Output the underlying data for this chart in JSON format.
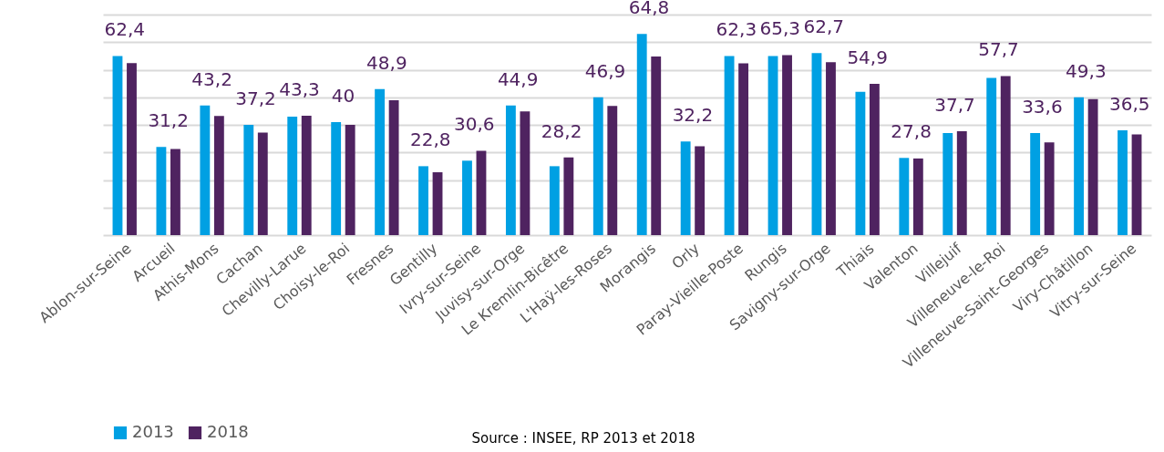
{
  "chart_data": {
    "type": "bar",
    "categories": [
      "Ablon-sur-Seine",
      "Arcueil",
      "Athis-Mons",
      "Cachan",
      "Chevilly-Larue",
      "Choisy-le-Roi",
      "Fresnes",
      "Gentilly",
      "Ivry-sur-Seine",
      "Juvisy-sur-Orge",
      "Le Kremlin-Bicêtre",
      "L'Haÿ-les-Roses",
      "Morangis",
      "Orly",
      "Paray-Vieille-Poste",
      "Rungis",
      "Savigny-sur-Orge",
      "Thiais",
      "Valenton",
      "Villejuif",
      "Villeneuve-le-Roi",
      "Villeneuve-Saint-Georges",
      "Viry-Châtillon",
      "Vitry-sur-Seine"
    ],
    "series": [
      {
        "name": "2013",
        "color": "#00a0e3",
        "values": [
          65,
          32,
          47,
          40,
          43,
          41,
          53,
          25,
          27,
          47,
          25,
          50,
          73,
          34,
          65,
          65,
          66,
          52,
          28,
          37,
          57,
          37,
          50,
          38
        ]
      },
      {
        "name": "2018",
        "color": "#4f2360",
        "values": [
          62.4,
          31.2,
          43.2,
          37.2,
          43.3,
          40,
          48.9,
          22.8,
          30.6,
          44.9,
          28.2,
          46.9,
          64.8,
          32.2,
          62.3,
          65.3,
          62.7,
          54.9,
          27.8,
          37.7,
          57.7,
          33.6,
          49.3,
          36.5
        ],
        "value_labels": [
          "62,4",
          "31,2",
          "43,2",
          "37,2",
          "43,3",
          "40",
          "48,9",
          "22,8",
          "30,6",
          "44,9",
          "28,2",
          "46,9",
          "64,8",
          "32,2",
          "62,3",
          "65,3",
          "62,7",
          "54,9",
          "27,8",
          "37,7",
          "57,7",
          "33,6",
          "49,3",
          "36,5"
        ]
      }
    ],
    "ylim": [
      0,
      80
    ],
    "yticks": [
      {
        "value": 0,
        "label": null
      },
      {
        "value": 10,
        "label": null
      },
      {
        "value": 20,
        "label": null
      },
      {
        "value": 30,
        "label": null
      },
      {
        "value": 40,
        "label": null
      },
      {
        "value": 50,
        "label": null
      },
      {
        "value": 60,
        "label": null
      },
      {
        "value": 70,
        "label": null
      },
      {
        "value": 80,
        "label": null
      }
    ],
    "tick_labels": "x",
    "grid": "y",
    "legend": "bottom left",
    "annotations": [
      "Source : INSEE, RP 2013 et 2018"
    ]
  }
}
